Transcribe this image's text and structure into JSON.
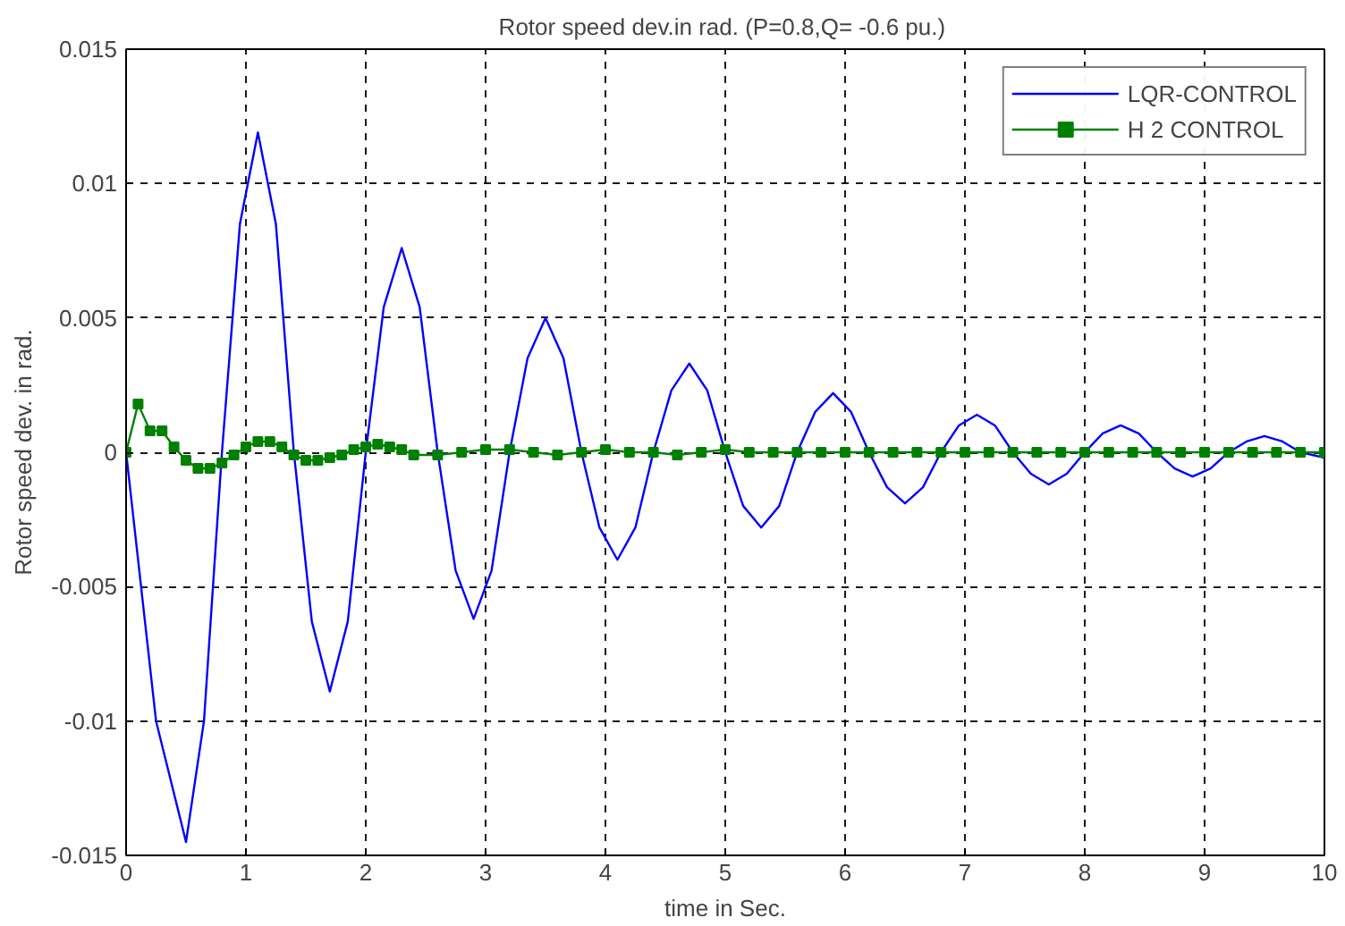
{
  "chart_data": {
    "type": "line",
    "title": "Rotor speed dev.in rad.  (P=0.8,Q= -0.6 pu.)",
    "xlabel": "time in Sec.",
    "ylabel": "Rotor speed dev. in rad.",
    "xlim": [
      0,
      10
    ],
    "ylim": [
      -0.015,
      0.015
    ],
    "xticks": [
      0,
      1,
      2,
      3,
      4,
      5,
      6,
      7,
      8,
      9,
      10
    ],
    "yticks": [
      -0.015,
      -0.01,
      -0.005,
      0,
      0.005,
      0.01,
      0.015
    ],
    "grid": true,
    "legend": "top right",
    "line_style": "solid",
    "series": [
      {
        "name": "LQR-CONTROL",
        "color": "#0000ff",
        "marker": "none",
        "x": [
          0,
          0.25,
          0.5,
          0.65,
          0.8,
          0.95,
          1.1,
          1.25,
          1.4,
          1.55,
          1.7,
          1.85,
          2.0,
          2.15,
          2.3,
          2.45,
          2.6,
          2.75,
          2.9,
          3.05,
          3.2,
          3.35,
          3.5,
          3.65,
          3.8,
          3.95,
          4.1,
          4.25,
          4.4,
          4.55,
          4.7,
          4.85,
          5.0,
          5.15,
          5.3,
          5.45,
          5.6,
          5.75,
          5.9,
          6.05,
          6.2,
          6.35,
          6.5,
          6.65,
          6.8,
          6.95,
          7.1,
          7.25,
          7.4,
          7.55,
          7.7,
          7.85,
          8.0,
          8.15,
          8.3,
          8.45,
          8.6,
          8.75,
          8.9,
          9.05,
          9.2,
          9.35,
          9.5,
          9.65,
          9.8,
          10
        ],
        "values": [
          0,
          -0.01,
          -0.0145,
          -0.01,
          0,
          0.0085,
          0.0119,
          0.0085,
          0,
          -0.0063,
          -0.0089,
          -0.0063,
          0,
          0.0054,
          0.0076,
          0.0054,
          0,
          -0.0044,
          -0.0062,
          -0.0044,
          0,
          0.0035,
          0.005,
          0.0035,
          0,
          -0.0028,
          -0.004,
          -0.0028,
          0,
          0.0023,
          0.0033,
          0.0023,
          0,
          -0.002,
          -0.0028,
          -0.002,
          0,
          0.0015,
          0.0022,
          0.0015,
          0,
          -0.0013,
          -0.0019,
          -0.0013,
          0,
          0.001,
          0.0014,
          0.001,
          0,
          -0.0008,
          -0.0012,
          -0.0008,
          0,
          0.0007,
          0.001,
          0.0007,
          0,
          -0.0006,
          -0.0009,
          -0.0006,
          0,
          0.0004,
          0.0006,
          0.0004,
          0,
          -0.0002
        ]
      },
      {
        "name": "H 2 CONTROL",
        "color": "#008000",
        "marker": "square",
        "x": [
          0,
          0.1,
          0.2,
          0.3,
          0.4,
          0.5,
          0.6,
          0.7,
          0.8,
          0.9,
          1.0,
          1.1,
          1.2,
          1.3,
          1.4,
          1.5,
          1.6,
          1.7,
          1.8,
          1.9,
          2.0,
          2.1,
          2.2,
          2.3,
          2.4,
          2.6,
          2.8,
          3.0,
          3.2,
          3.4,
          3.6,
          3.8,
          4.0,
          4.2,
          4.4,
          4.6,
          4.8,
          5.0,
          5.2,
          5.4,
          5.6,
          5.8,
          6.0,
          6.2,
          6.4,
          6.6,
          6.8,
          7.0,
          7.2,
          7.4,
          7.6,
          7.8,
          8.0,
          8.2,
          8.4,
          8.6,
          8.8,
          9.0,
          9.2,
          9.4,
          9.6,
          9.8,
          10
        ],
        "values": [
          0,
          0.0018,
          0.0008,
          0.0008,
          0.0002,
          -0.0003,
          -0.0006,
          -0.0006,
          -0.0004,
          -0.0001,
          0.0002,
          0.0004,
          0.0004,
          0.0002,
          -0.0001,
          -0.0003,
          -0.0003,
          -0.0002,
          -0.0001,
          0.0001,
          0.0002,
          0.0003,
          0.0002,
          0.0001,
          -0.0001,
          -0.0001,
          0,
          0.0001,
          0.0001,
          0,
          -0.0001,
          0,
          0.0001,
          0,
          0,
          -0.0001,
          0,
          0.0001,
          0,
          0,
          0,
          0,
          0,
          0,
          0,
          0,
          0,
          0,
          0,
          0,
          0,
          0,
          0,
          0,
          0,
          0,
          0,
          0,
          0,
          0,
          0,
          0,
          0
        ]
      }
    ]
  }
}
